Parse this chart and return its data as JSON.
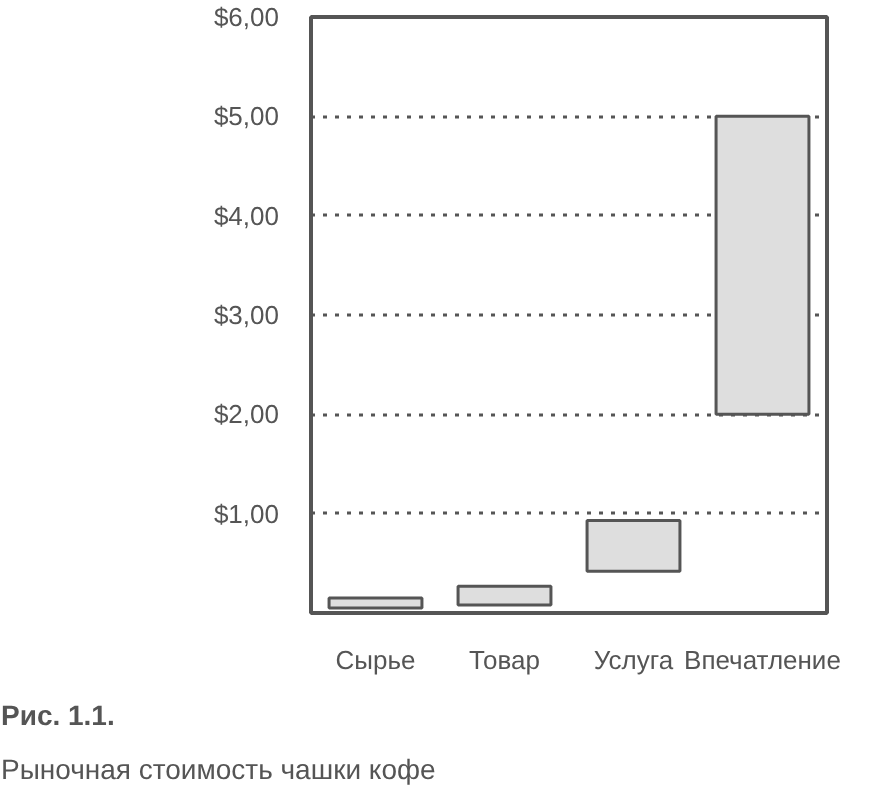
{
  "chart_data": {
    "type": "bar",
    "categories": [
      "Сырье",
      "Товар",
      "Услуга",
      "Впечатление"
    ],
    "values": [
      0.1,
      0.19,
      0.51,
      3.0
    ],
    "base": [
      0.05,
      0.08,
      0.42,
      2.0
    ],
    "color": "#dedede",
    "ylim": [
      0,
      6
    ],
    "yticks": [
      {
        "value": 1,
        "label": "$1,00"
      },
      {
        "value": 2,
        "label": "$2,00"
      },
      {
        "value": 3,
        "label": "$3,00"
      },
      {
        "value": 4,
        "label": "$4,00"
      },
      {
        "value": 5,
        "label": "$5,00"
      },
      {
        "value": 6,
        "label": "$6,00"
      }
    ],
    "grid": "y",
    "annotations": [
      "Рис. 1.1.",
      "Рыночная стоимость чашки кофе"
    ]
  }
}
